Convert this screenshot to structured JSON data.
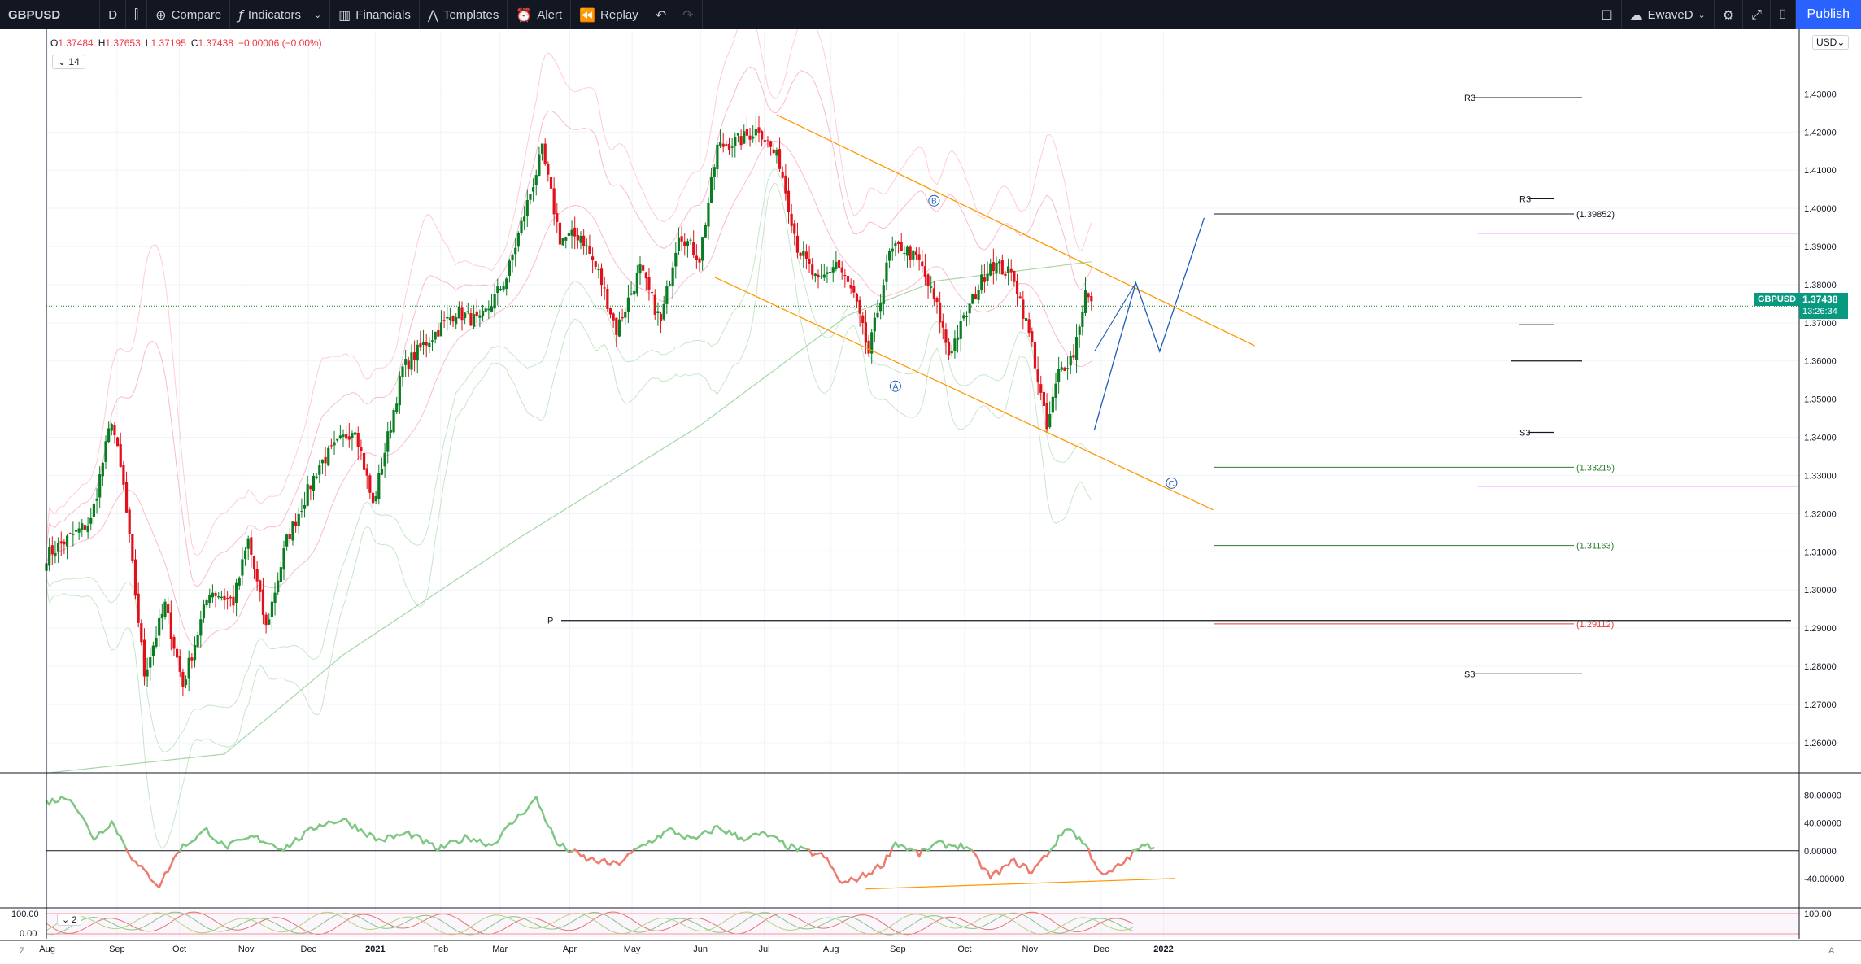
{
  "toolbar": {
    "symbol": "GBPUSD",
    "interval": "D",
    "compare": "Compare",
    "indicators": "Indicators",
    "financials": "Financials",
    "templates": "Templates",
    "alert": "Alert",
    "replay": "Replay",
    "user": "EwaveD",
    "publish": "Publish"
  },
  "legend": {
    "o_label": "O",
    "o": "1.37484",
    "h_label": "H",
    "h": "1.37653",
    "l_label": "L",
    "l": "1.37195",
    "c_label": "C",
    "c": "1.37438",
    "change": "−0.00006 (−0.00%)",
    "indicator_btn": "14",
    "indicator2_btn": "2"
  },
  "currency": "USD",
  "last_price": {
    "symbol": "GBPUSD",
    "price": "1.37438",
    "countdown": "13:26:34"
  },
  "corners": {
    "left": "Z",
    "right": "A"
  },
  "colors": {
    "up": "#0a7d22",
    "down": "#e0111a",
    "channel": "#ff9800",
    "wave": "#1e5bb8",
    "fib_green": "#2e7d32",
    "fib_red": "#e53935",
    "magenta": "#e040fb",
    "rsi_up": "#81c784",
    "rsi_down": "#ef7a6e",
    "price_tag": "#089981"
  },
  "chart_data": [
    {
      "type": "candlestick",
      "symbol": "GBPUSD",
      "interval": "D",
      "x_ticks": [
        "Aug",
        "Sep",
        "Oct",
        "Nov",
        "Dec",
        "2021",
        "Feb",
        "Mar",
        "Apr",
        "May",
        "Jun",
        "Jul",
        "Aug",
        "Sep",
        "Oct",
        "Nov",
        "Dec",
        "2022"
      ],
      "y_ticks": [
        "1.43000",
        "1.42000",
        "1.41000",
        "1.40000",
        "1.39000",
        "1.38000",
        "1.37000",
        "1.36000",
        "1.35000",
        "1.34000",
        "1.33000",
        "1.32000",
        "1.31000",
        "1.30000",
        "1.29000",
        "1.28000",
        "1.27000",
        "1.26000"
      ],
      "ylim": [
        1.2525,
        1.4465
      ],
      "close_anchors": [
        {
          "t": 0,
          "v": 1.309
        },
        {
          "t": 15,
          "v": 1.318
        },
        {
          "t": 22,
          "v": 1.345
        },
        {
          "t": 26,
          "v": 1.327
        },
        {
          "t": 33,
          "v": 1.278
        },
        {
          "t": 40,
          "v": 1.296
        },
        {
          "t": 46,
          "v": 1.275
        },
        {
          "t": 55,
          "v": 1.3
        },
        {
          "t": 63,
          "v": 1.297
        },
        {
          "t": 68,
          "v": 1.313
        },
        {
          "t": 74,
          "v": 1.29
        },
        {
          "t": 81,
          "v": 1.313
        },
        {
          "t": 92,
          "v": 1.333
        },
        {
          "t": 104,
          "v": 1.343
        },
        {
          "t": 110,
          "v": 1.322
        },
        {
          "t": 120,
          "v": 1.358
        },
        {
          "t": 128,
          "v": 1.365
        },
        {
          "t": 138,
          "v": 1.373
        },
        {
          "t": 146,
          "v": 1.37
        },
        {
          "t": 155,
          "v": 1.382
        },
        {
          "t": 163,
          "v": 1.404
        },
        {
          "t": 167,
          "v": 1.415
        },
        {
          "t": 173,
          "v": 1.392
        },
        {
          "t": 180,
          "v": 1.393
        },
        {
          "t": 186,
          "v": 1.383
        },
        {
          "t": 192,
          "v": 1.368
        },
        {
          "t": 200,
          "v": 1.384
        },
        {
          "t": 207,
          "v": 1.37
        },
        {
          "t": 213,
          "v": 1.394
        },
        {
          "t": 220,
          "v": 1.387
        },
        {
          "t": 226,
          "v": 1.416
        },
        {
          "t": 234,
          "v": 1.418
        },
        {
          "t": 240,
          "v": 1.421
        },
        {
          "t": 247,
          "v": 1.412
        },
        {
          "t": 253,
          "v": 1.39
        },
        {
          "t": 260,
          "v": 1.38
        },
        {
          "t": 266,
          "v": 1.386
        },
        {
          "t": 272,
          "v": 1.377
        },
        {
          "t": 277,
          "v": 1.362
        },
        {
          "t": 284,
          "v": 1.388
        },
        {
          "t": 288,
          "v": 1.39
        },
        {
          "t": 294,
          "v": 1.386
        },
        {
          "t": 300,
          "v": 1.374
        },
        {
          "t": 304,
          "v": 1.362
        },
        {
          "t": 312,
          "v": 1.376
        },
        {
          "t": 318,
          "v": 1.386
        },
        {
          "t": 326,
          "v": 1.382
        },
        {
          "t": 332,
          "v": 1.364
        },
        {
          "t": 337,
          "v": 1.342
        },
        {
          "t": 341,
          "v": 1.357
        },
        {
          "t": 346,
          "v": 1.362
        },
        {
          "t": 350,
          "v": 1.378
        },
        {
          "t": 352,
          "v": 1.3744
        }
      ],
      "ma_200_anchors": [
        {
          "t": 0,
          "v": 1.252
        },
        {
          "t": 60,
          "v": 1.257
        },
        {
          "t": 100,
          "v": 1.283
        },
        {
          "t": 160,
          "v": 1.314
        },
        {
          "t": 220,
          "v": 1.343
        },
        {
          "t": 270,
          "v": 1.372
        },
        {
          "t": 300,
          "v": 1.381
        },
        {
          "t": 352,
          "v": 1.386
        }
      ],
      "last_price": 1.37438,
      "pivot_levels": [
        {
          "label": "R3",
          "value": 1.429
        },
        {
          "label": "R3",
          "value": 1.4025
        },
        {
          "label": "S3",
          "value": 1.3413
        },
        {
          "label": "S3",
          "value": 1.278
        },
        {
          "label": "P",
          "value": 1.292
        }
      ],
      "fib_levels": [
        {
          "label": "(1.39852)",
          "value": 1.39852
        },
        {
          "label": "(1.33215)",
          "value": 1.33215
        },
        {
          "label": "(1.31163)",
          "value": 1.31163
        },
        {
          "label": "(1.29112)",
          "value": 1.29112
        }
      ],
      "magenta_levels": [
        1.3935,
        1.3272
      ],
      "channel": {
        "upper": [
          {
            "t": 246,
            "v": 1.4245
          },
          {
            "t": 407,
            "v": 1.364
          }
        ],
        "lower": [
          {
            "t": 225,
            "v": 1.382
          },
          {
            "t": 393,
            "v": 1.321
          }
        ]
      },
      "waves": [
        {
          "label": "A",
          "t": 286,
          "v": 1.3534
        },
        {
          "label": "B",
          "t": 299,
          "v": 1.402
        },
        {
          "label": "C",
          "t": 379,
          "v": 1.328
        }
      ],
      "projection": [
        {
          "t": 353,
          "v": 1.342
        },
        {
          "t": 367,
          "v": 1.3805
        },
        {
          "t": 375,
          "v": 1.3625
        },
        {
          "t": 390,
          "v": 1.3975
        }
      ]
    },
    {
      "type": "line",
      "name": "oscillator",
      "y_ticks": [
        "80.00000",
        "40.00000",
        "0.00000",
        "-40.00000"
      ],
      "ylim": [
        -80,
        110
      ],
      "anchors": [
        {
          "t": 0,
          "v": 70
        },
        {
          "t": 8,
          "v": 78
        },
        {
          "t": 16,
          "v": 18
        },
        {
          "t": 22,
          "v": 42
        },
        {
          "t": 30,
          "v": -18
        },
        {
          "t": 38,
          "v": -50
        },
        {
          "t": 45,
          "v": 3
        },
        {
          "t": 54,
          "v": 30
        },
        {
          "t": 60,
          "v": 5
        },
        {
          "t": 70,
          "v": 20
        },
        {
          "t": 80,
          "v": 3
        },
        {
          "t": 92,
          "v": 38
        },
        {
          "t": 100,
          "v": 45
        },
        {
          "t": 112,
          "v": 15
        },
        {
          "t": 122,
          "v": 25
        },
        {
          "t": 132,
          "v": 2
        },
        {
          "t": 142,
          "v": 20
        },
        {
          "t": 150,
          "v": 8
        },
        {
          "t": 158,
          "v": 45
        },
        {
          "t": 165,
          "v": 75
        },
        {
          "t": 172,
          "v": 10
        },
        {
          "t": 182,
          "v": -12
        },
        {
          "t": 192,
          "v": -20
        },
        {
          "t": 200,
          "v": 5
        },
        {
          "t": 210,
          "v": 30
        },
        {
          "t": 218,
          "v": 15
        },
        {
          "t": 226,
          "v": 34
        },
        {
          "t": 234,
          "v": 18
        },
        {
          "t": 242,
          "v": 24
        },
        {
          "t": 250,
          "v": 6
        },
        {
          "t": 262,
          "v": -8
        },
        {
          "t": 268,
          "v": -48
        },
        {
          "t": 276,
          "v": -35
        },
        {
          "t": 282,
          "v": -18
        },
        {
          "t": 286,
          "v": 12
        },
        {
          "t": 294,
          "v": -5
        },
        {
          "t": 300,
          "v": 10
        },
        {
          "t": 310,
          "v": 6
        },
        {
          "t": 318,
          "v": -38
        },
        {
          "t": 326,
          "v": -15
        },
        {
          "t": 332,
          "v": -30
        },
        {
          "t": 338,
          "v": 0
        },
        {
          "t": 344,
          "v": 35
        },
        {
          "t": 350,
          "v": 8
        },
        {
          "t": 356,
          "v": -38
        },
        {
          "t": 362,
          "v": -20
        },
        {
          "t": 368,
          "v": 4
        },
        {
          "t": 373,
          "v": 8
        }
      ],
      "trendline": [
        {
          "t": 276,
          "v": -55
        },
        {
          "t": 380,
          "v": -40
        }
      ]
    },
    {
      "type": "line",
      "name": "indicator-2",
      "y_ticks": [
        "100.00",
        "0.00"
      ],
      "right_tick": "100.00",
      "ylim": [
        0,
        100
      ]
    }
  ]
}
